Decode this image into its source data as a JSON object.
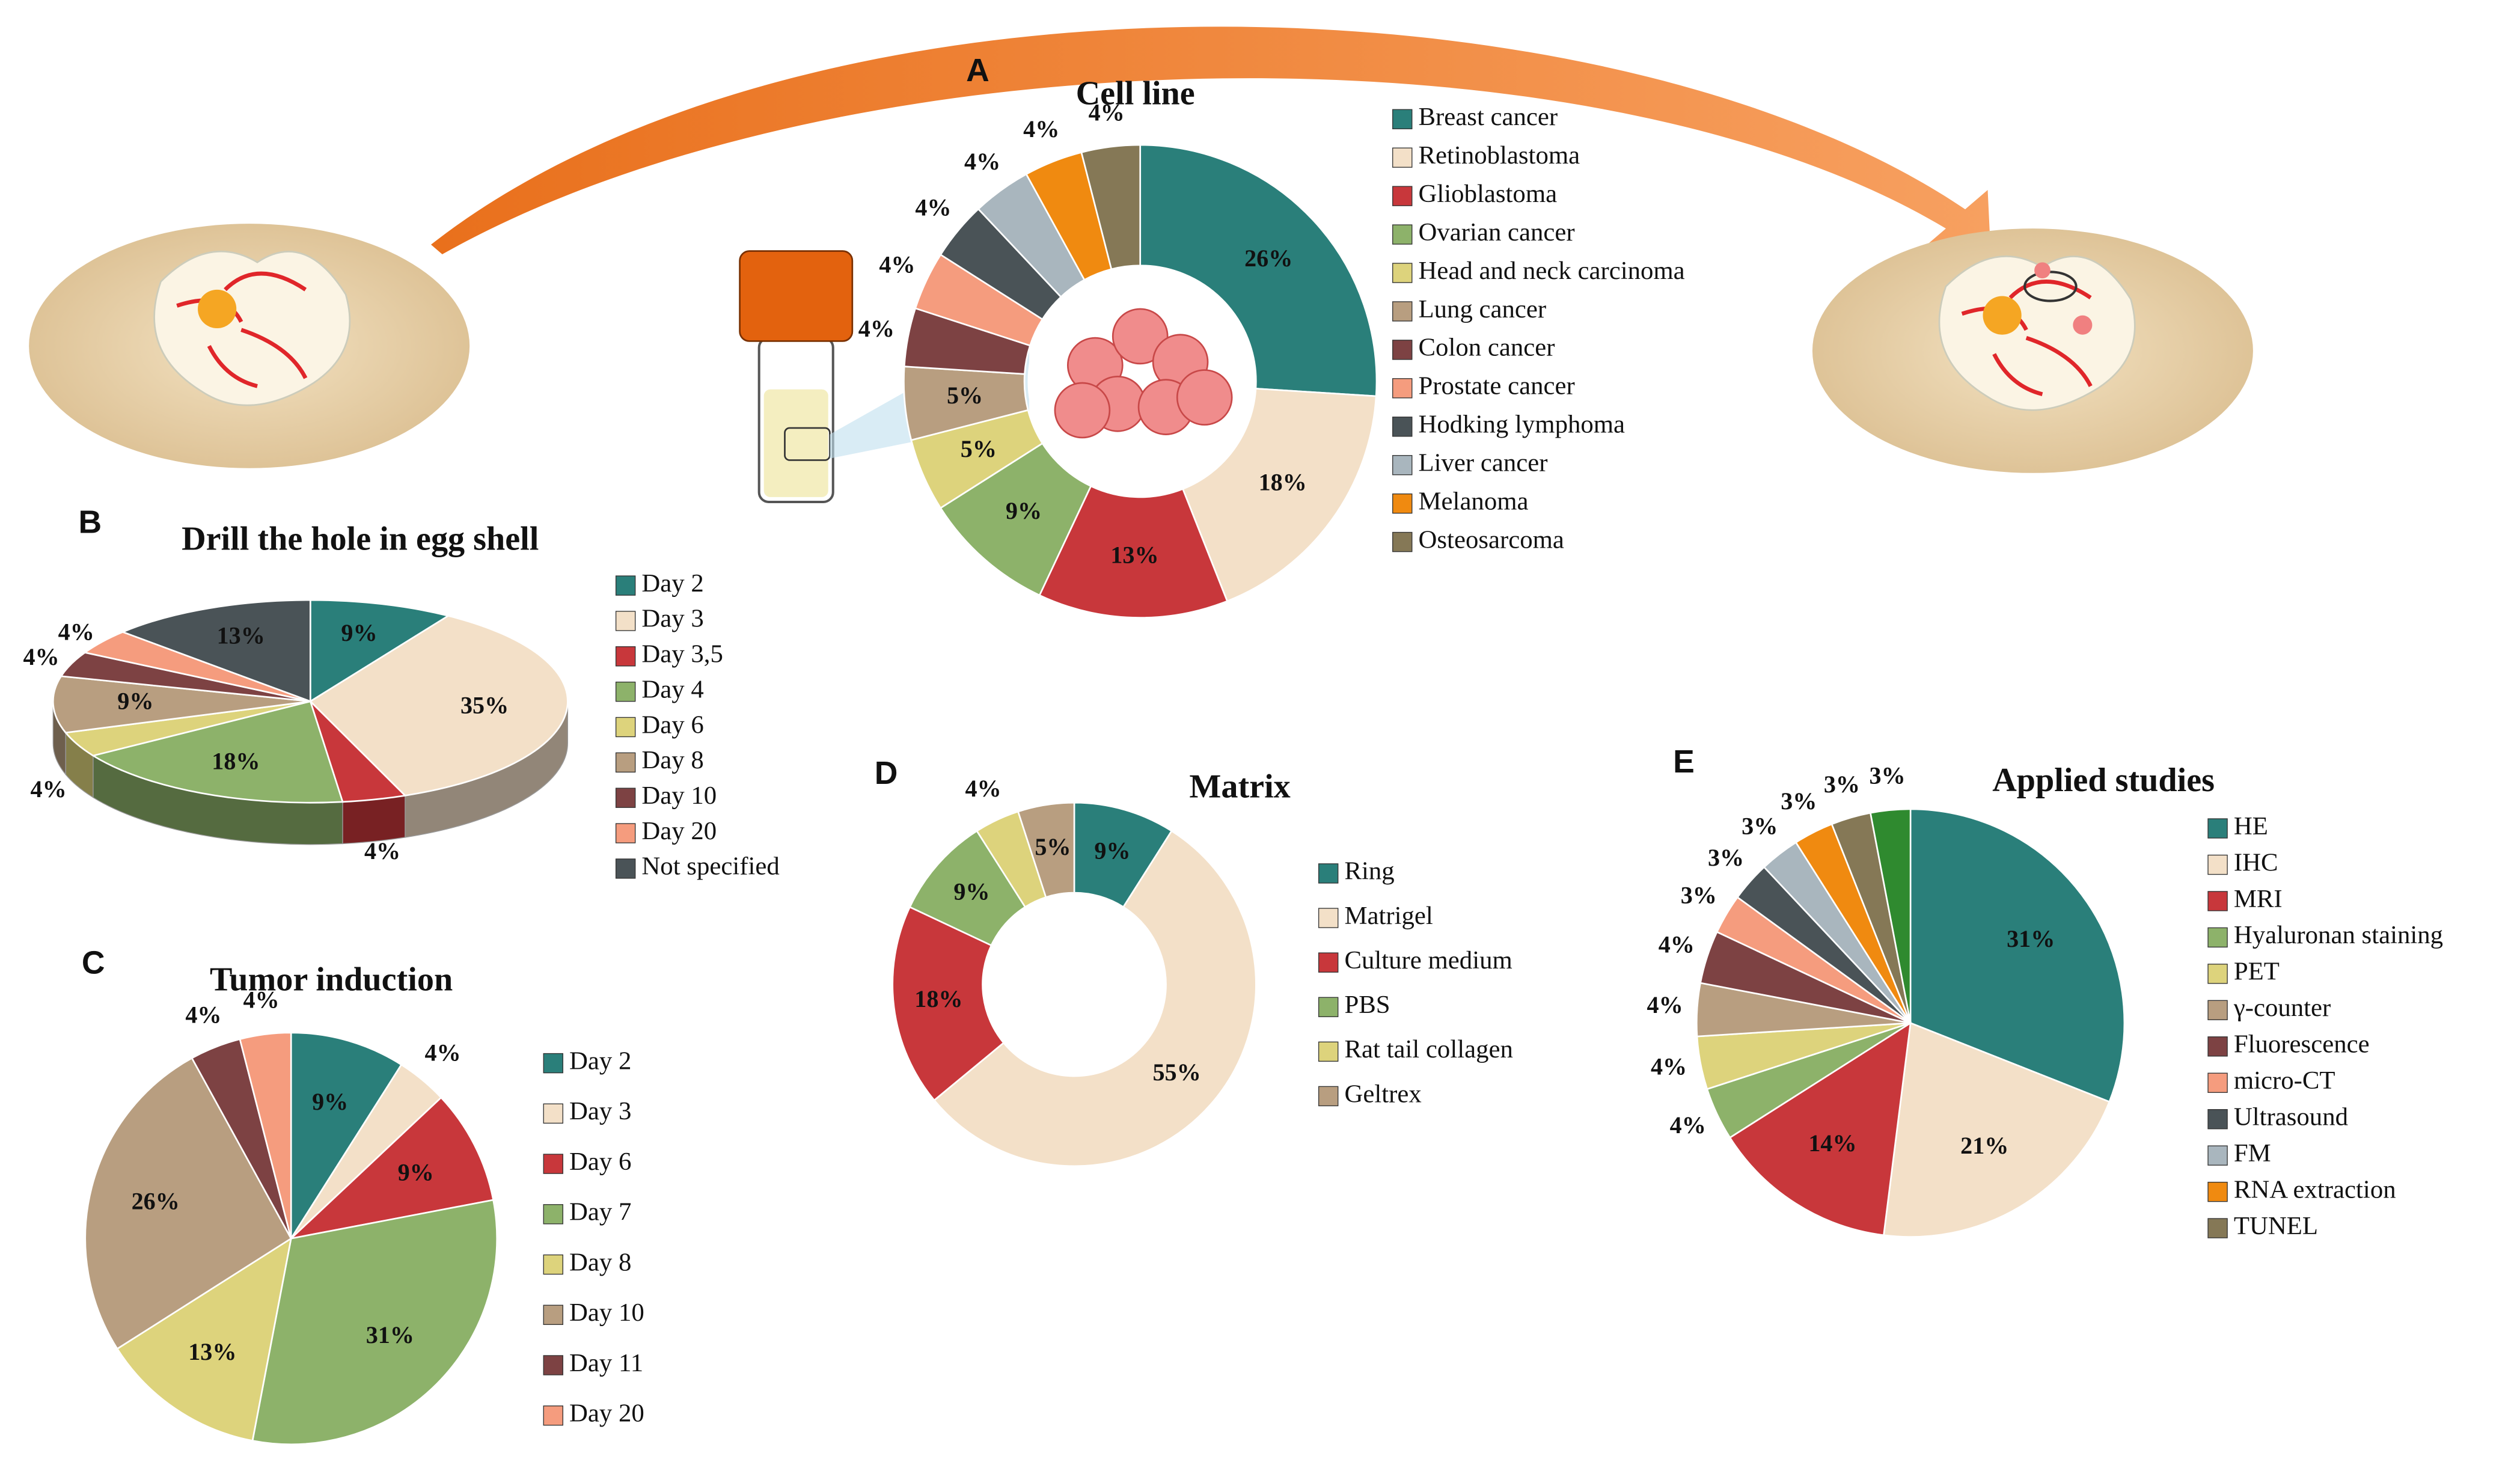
{
  "chart_data": [
    {
      "type": "donut",
      "panel": "A",
      "title": "Cell line",
      "categories": [
        "Breast cancer",
        "Retinoblastoma",
        "Glioblastoma",
        "Ovarian cancer",
        "Head and neck carcinoma",
        "Lung cancer",
        "Colon cancer",
        "Prostate cancer",
        "Hodking lymphoma",
        "Liver cancer",
        "Melanoma",
        "Osteosarcoma"
      ],
      "values": [
        26,
        18,
        13,
        9,
        5,
        5,
        4,
        4,
        4,
        4,
        4,
        4
      ],
      "value_labels": [
        "26%",
        "18%",
        "13%",
        "9%",
        "5%",
        "5%",
        "4%",
        "4%",
        "4%",
        "4%",
        "4%",
        "4%"
      ],
      "colors": [
        "#2a7f7a",
        "#f3e0c8",
        "#c8373b",
        "#8db26a",
        "#ddd37c",
        "#b89e80",
        "#7d4243",
        "#f59c7e",
        "#4a5357",
        "#a9b6be",
        "#f08a10",
        "#857856"
      ]
    },
    {
      "type": "pie",
      "three_d": true,
      "panel": "B",
      "title": "Drill the hole in egg shell",
      "categories": [
        "Day 2",
        "Day 3",
        "Day 3,5",
        "Day 4",
        "Day 6",
        "Day 8",
        "Day 10",
        "Day 20",
        "Not specified"
      ],
      "values": [
        9,
        35,
        4,
        18,
        4,
        9,
        4,
        4,
        13
      ],
      "value_labels": [
        "9%",
        "35%",
        "4%",
        "18%",
        "4%",
        "9%",
        "4%",
        "4%",
        "13%"
      ],
      "colors": [
        "#2a7f7a",
        "#f3e0c8",
        "#c8373b",
        "#8db26a",
        "#ddd37c",
        "#b89e80",
        "#7d4243",
        "#f59c7e",
        "#4a5357"
      ]
    },
    {
      "type": "pie",
      "panel": "C",
      "title": "Tumor induction",
      "categories": [
        "Day 2",
        "Day 3",
        "Day 6",
        "Day 7",
        "Day 8",
        "Day 10",
        "Day 11",
        "Day 20"
      ],
      "values": [
        9,
        4,
        9,
        31,
        13,
        26,
        4,
        4
      ],
      "value_labels": [
        "9%",
        "4%",
        "9%",
        "31%",
        "13%",
        "26%",
        "4%",
        "4%"
      ],
      "colors": [
        "#2a7f7a",
        "#f3e0c8",
        "#c8373b",
        "#8db26a",
        "#ddd37c",
        "#b89e80",
        "#7d4243",
        "#f59c7e"
      ]
    },
    {
      "type": "donut",
      "panel": "D",
      "title": "Matrix",
      "categories": [
        "Ring",
        "Matrigel",
        "Culture medium",
        "PBS",
        "Rat tail collagen",
        "Geltrex"
      ],
      "values": [
        9,
        55,
        18,
        9,
        4,
        5
      ],
      "value_labels": [
        "9%",
        "55%",
        "18%",
        "9%",
        "4%",
        "5%"
      ],
      "colors": [
        "#2a7f7a",
        "#f3e0c8",
        "#c8373b",
        "#8db26a",
        "#ddd37c",
        "#b89e80"
      ]
    },
    {
      "type": "pie",
      "panel": "E",
      "title": "Applied studies",
      "categories": [
        "HE",
        "IHC",
        "MRI",
        "Hyaluronan staining",
        "PET",
        "γ-counter",
        "Fluorescence",
        "micro-CT",
        "Ultrasound",
        "FM",
        "RNA extraction",
        "TUNEL",
        null
      ],
      "values": [
        31,
        21,
        14,
        4,
        4,
        4,
        4,
        3,
        3,
        3,
        3,
        3,
        3
      ],
      "value_labels": [
        "31%",
        "21%",
        "14%",
        "4%",
        "4%",
        "4%",
        "4%",
        "3%",
        "3%",
        "3%",
        "3%",
        "3%",
        "3%"
      ],
      "colors": [
        "#2a7f7a",
        "#f3e0c8",
        "#c8373b",
        "#8db26a",
        "#ddd37c",
        "#b89e80",
        "#7d4243",
        "#f59c7e",
        "#4a5357",
        "#a9b6be",
        "#f08a10",
        "#857856",
        "#2f8a2f"
      ]
    }
  ]
}
